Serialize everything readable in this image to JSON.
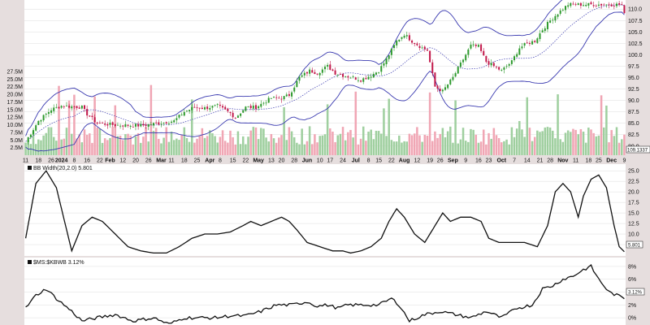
{
  "colors": {
    "page_bg": "#e6dede",
    "plot_bg": "#ffffff",
    "grid": "#dddddd",
    "candle_up": "#2e9a2e",
    "candle_down": "#c2184a",
    "vol_up": "#9fcf9f",
    "vol_down": "#f0a6b4",
    "bands": "#3a3ab0",
    "ma": "#3a3ab0",
    "line": "#111111"
  },
  "axis_labels": {
    "x_ticks": [
      "11",
      "18",
      "26",
      "2024",
      "8",
      "16",
      "22",
      "Feb",
      "12",
      "20",
      "26",
      "Mar",
      "11",
      "18",
      "25",
      "Apr",
      "8",
      "15",
      "22",
      "May",
      "13",
      "20",
      "28",
      "Jun",
      "10",
      "17",
      "24",
      "Jul",
      "8",
      "15",
      "22",
      "Aug",
      "12",
      "19",
      "26",
      "Sep",
      "9",
      "16",
      "23",
      "Oct",
      "7",
      "14",
      "21",
      "28",
      "Nov",
      "11",
      "18",
      "25",
      "Dec",
      "9"
    ],
    "month_ticks": [
      "2024",
      "Feb",
      "Mar",
      "Apr",
      "May",
      "Jun",
      "Jul",
      "Aug",
      "Sep",
      "Oct",
      "Nov",
      "Dec"
    ],
    "price_ticks": [
      "110.0",
      "107.5",
      "105.0",
      "102.5",
      "100.0",
      "97.5",
      "95.0",
      "92.5",
      "90.0",
      "87.5",
      "85.0",
      "82.5",
      "80.0"
    ],
    "volume_ticks": [
      "27.5M",
      "25.0M",
      "22.5M",
      "20.0M",
      "17.5M",
      "15.0M",
      "12.5M",
      "10.0M",
      "7.5M",
      "5.0M",
      "2.5M"
    ],
    "last_price_box": "109.1337",
    "bbw_ticks": [
      "25.0",
      "22.5",
      "20.0",
      "17.5",
      "15.0",
      "12.5",
      "10.0",
      "7.5"
    ],
    "bbw_value_box": "5.801",
    "kbwb_ticks": [
      "8%",
      "6%",
      "4%",
      "2%",
      "0%"
    ],
    "kbwb_value_box": "3.12%"
  },
  "chart_data": [
    {
      "type": "candlestick",
      "title": "",
      "y_axis": "price",
      "ylim": [
        78,
        112
      ],
      "volume_ylim": [
        0,
        28
      ],
      "volume_units": "M",
      "overlays": [
        "Bollinger Bands (20,2.0)"
      ],
      "points": 235,
      "anchors": [
        [
          0,
          81
        ],
        [
          5,
          85.5
        ],
        [
          10,
          88
        ],
        [
          14,
          88.8
        ],
        [
          22,
          88.5
        ],
        [
          24,
          87
        ],
        [
          28,
          85
        ],
        [
          35,
          84.6
        ],
        [
          45,
          84.5
        ],
        [
          52,
          85
        ],
        [
          58,
          85.5
        ],
        [
          62,
          87.5
        ],
        [
          66,
          88.5
        ],
        [
          70,
          88.3
        ],
        [
          75,
          88.8
        ],
        [
          80,
          87.2
        ],
        [
          82,
          86.2
        ],
        [
          86,
          88.5
        ],
        [
          90,
          88.5
        ],
        [
          93,
          89.5
        ],
        [
          96,
          90.5
        ],
        [
          100,
          90.5
        ],
        [
          103,
          91.2
        ],
        [
          107,
          95
        ],
        [
          111,
          96.5
        ],
        [
          114,
          96
        ],
        [
          118,
          97.5
        ],
        [
          121,
          96
        ],
        [
          124,
          95.5
        ],
        [
          128,
          95
        ],
        [
          131,
          94.5
        ],
        [
          135,
          95.5
        ],
        [
          138,
          96.5
        ],
        [
          141,
          99
        ],
        [
          145,
          103
        ],
        [
          148,
          104.5
        ],
        [
          151,
          103
        ],
        [
          155,
          101.5
        ],
        [
          157,
          101
        ],
        [
          160,
          93
        ],
        [
          163,
          92
        ],
        [
          167,
          95
        ],
        [
          170,
          98
        ],
        [
          174,
          102
        ],
        [
          177,
          101.8
        ],
        [
          180,
          98.5
        ],
        [
          183,
          97.5
        ],
        [
          186,
          96.5
        ],
        [
          190,
          98.5
        ],
        [
          193,
          101.5
        ],
        [
          196,
          102.5
        ],
        [
          199,
          103
        ],
        [
          202,
          105.5
        ],
        [
          205,
          107.5
        ],
        [
          208,
          109.1
        ],
        [
          212,
          111
        ],
        [
          218,
          111
        ],
        [
          234,
          111
        ]
      ],
      "last": 109.1337
    },
    {
      "type": "line",
      "title": "BB Width(20,2.0) 5.801",
      "ylim": [
        5,
        26
      ],
      "anchors": [
        [
          0,
          9
        ],
        [
          4,
          22
        ],
        [
          8,
          25
        ],
        [
          12,
          21
        ],
        [
          18,
          6
        ],
        [
          22,
          12
        ],
        [
          26,
          14
        ],
        [
          30,
          13
        ],
        [
          35,
          10
        ],
        [
          40,
          7
        ],
        [
          45,
          6
        ],
        [
          50,
          5.5
        ],
        [
          55,
          5.5
        ],
        [
          60,
          7
        ],
        [
          65,
          9
        ],
        [
          70,
          10
        ],
        [
          75,
          10
        ],
        [
          80,
          10.5
        ],
        [
          85,
          12
        ],
        [
          88,
          13
        ],
        [
          92,
          12
        ],
        [
          96,
          13
        ],
        [
          100,
          14
        ],
        [
          103,
          13
        ],
        [
          106,
          11
        ],
        [
          110,
          8
        ],
        [
          115,
          7
        ],
        [
          120,
          6
        ],
        [
          124,
          6
        ],
        [
          127,
          5.5
        ],
        [
          131,
          6
        ],
        [
          135,
          7
        ],
        [
          139,
          9
        ],
        [
          142,
          13
        ],
        [
          145,
          16
        ],
        [
          148,
          14
        ],
        [
          152,
          10
        ],
        [
          156,
          8
        ],
        [
          160,
          12
        ],
        [
          163,
          15
        ],
        [
          166,
          13
        ],
        [
          170,
          14
        ],
        [
          174,
          14
        ],
        [
          178,
          13
        ],
        [
          181,
          9
        ],
        [
          185,
          8
        ],
        [
          190,
          8
        ],
        [
          195,
          8
        ],
        [
          200,
          7
        ],
        [
          204,
          12
        ],
        [
          207,
          20
        ],
        [
          210,
          22
        ],
        [
          213,
          20
        ],
        [
          216,
          14
        ],
        [
          218,
          19
        ],
        [
          221,
          23
        ],
        [
          224,
          24
        ],
        [
          227,
          21
        ],
        [
          230,
          12
        ],
        [
          232,
          7
        ],
        [
          234,
          5.8
        ]
      ],
      "last": 5.801
    },
    {
      "type": "line",
      "title": "$MS:$KBWB 3.12%",
      "ylim": [
        -1,
        9
      ],
      "anchors": [
        [
          0,
          1.5
        ],
        [
          4,
          3.5
        ],
        [
          8,
          4.5
        ],
        [
          12,
          3
        ],
        [
          18,
          1
        ],
        [
          22,
          -0.5
        ],
        [
          28,
          0
        ],
        [
          35,
          0.5
        ],
        [
          42,
          -0.5
        ],
        [
          50,
          0
        ],
        [
          56,
          -1
        ],
        [
          62,
          0
        ],
        [
          68,
          0
        ],
        [
          74,
          0
        ],
        [
          80,
          0.3
        ],
        [
          86,
          0.3
        ],
        [
          92,
          1
        ],
        [
          98,
          2
        ],
        [
          104,
          2
        ],
        [
          110,
          2.5
        ],
        [
          114,
          1.8
        ],
        [
          118,
          2
        ],
        [
          122,
          1.5
        ],
        [
          126,
          2
        ],
        [
          130,
          2
        ],
        [
          134,
          2
        ],
        [
          138,
          2
        ],
        [
          143,
          3
        ],
        [
          146,
          2
        ],
        [
          150,
          -0.5
        ],
        [
          156,
          0.5
        ],
        [
          162,
          1
        ],
        [
          168,
          0.5
        ],
        [
          174,
          0
        ],
        [
          180,
          1
        ],
        [
          186,
          0
        ],
        [
          192,
          1.5
        ],
        [
          198,
          2
        ],
        [
          202,
          4.5
        ],
        [
          206,
          5
        ],
        [
          210,
          6
        ],
        [
          214,
          6.5
        ],
        [
          218,
          7.5
        ],
        [
          221,
          8
        ],
        [
          224,
          6
        ],
        [
          228,
          4
        ],
        [
          231,
          3.5
        ],
        [
          234,
          3.1
        ]
      ],
      "last": 3.12
    }
  ]
}
